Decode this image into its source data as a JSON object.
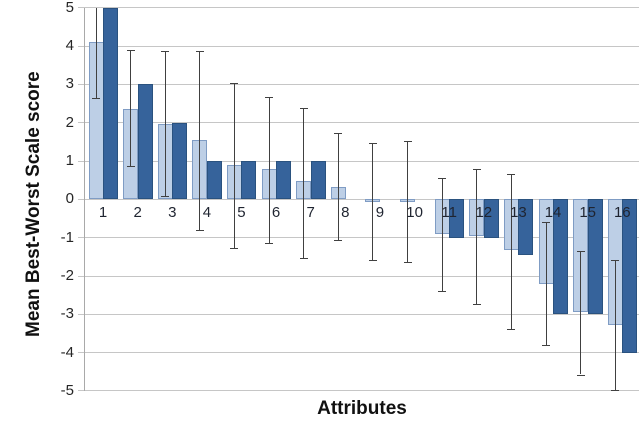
{
  "chart_data": {
    "type": "bar",
    "title": "",
    "xlabel": "Attributes",
    "ylabel": "Mean Best-Worst Scale score",
    "ylim": [
      -5,
      5
    ],
    "ytick_step": 1,
    "yticks": [
      "5",
      "4",
      "3",
      "2",
      "1",
      "0",
      "-1",
      "-2",
      "-3",
      "-4",
      "-5"
    ],
    "grid": true,
    "legend": false,
    "categories": [
      "1",
      "2",
      "3",
      "4",
      "5",
      "6",
      "7",
      "8",
      "9",
      "10",
      "11",
      "12",
      "13",
      "14",
      "15",
      "16"
    ],
    "series": [
      {
        "name": "light-blue-series",
        "color": "#BDCFE6",
        "border_color": "#7F9CC4",
        "values": [
          4.1,
          2.37,
          1.97,
          1.55,
          0.9,
          0.8,
          0.47,
          0.33,
          -0.07,
          -0.07,
          -0.9,
          -0.95,
          -1.32,
          -2.22,
          -2.95,
          -3.28
        ]
      },
      {
        "name": "dark-blue-series",
        "color": "#36639B",
        "border_color": "#2A527F",
        "values": [
          5,
          3,
          2,
          1,
          1,
          1,
          1,
          0,
          0,
          0,
          -1,
          -1,
          -1.45,
          -3,
          -3,
          -4
        ]
      }
    ],
    "error_bars": {
      "attached_to": "light-blue-series",
      "color": "#404040",
      "low": [
        2.65,
        0.87,
        0.09,
        -0.8,
        -1.26,
        -1.15,
        -1.52,
        -1.05,
        -1.57,
        -1.63,
        -2.39,
        -2.73,
        -3.39,
        -3.8,
        -4.57,
        -4.98
      ],
      "high": [
        5.0,
        3.9,
        3.88,
        3.87,
        3.03,
        2.67,
        2.38,
        1.73,
        1.47,
        1.53,
        0.57,
        0.79,
        0.66,
        -0.6,
        -1.36,
        -1.58
      ],
      "top_clipped": [
        true,
        false,
        false,
        false,
        false,
        false,
        false,
        false,
        false,
        false,
        false,
        false,
        false,
        false,
        false,
        false
      ]
    },
    "gridline_color": "#c6c6c6",
    "axis_color": "#a9a9a9"
  }
}
